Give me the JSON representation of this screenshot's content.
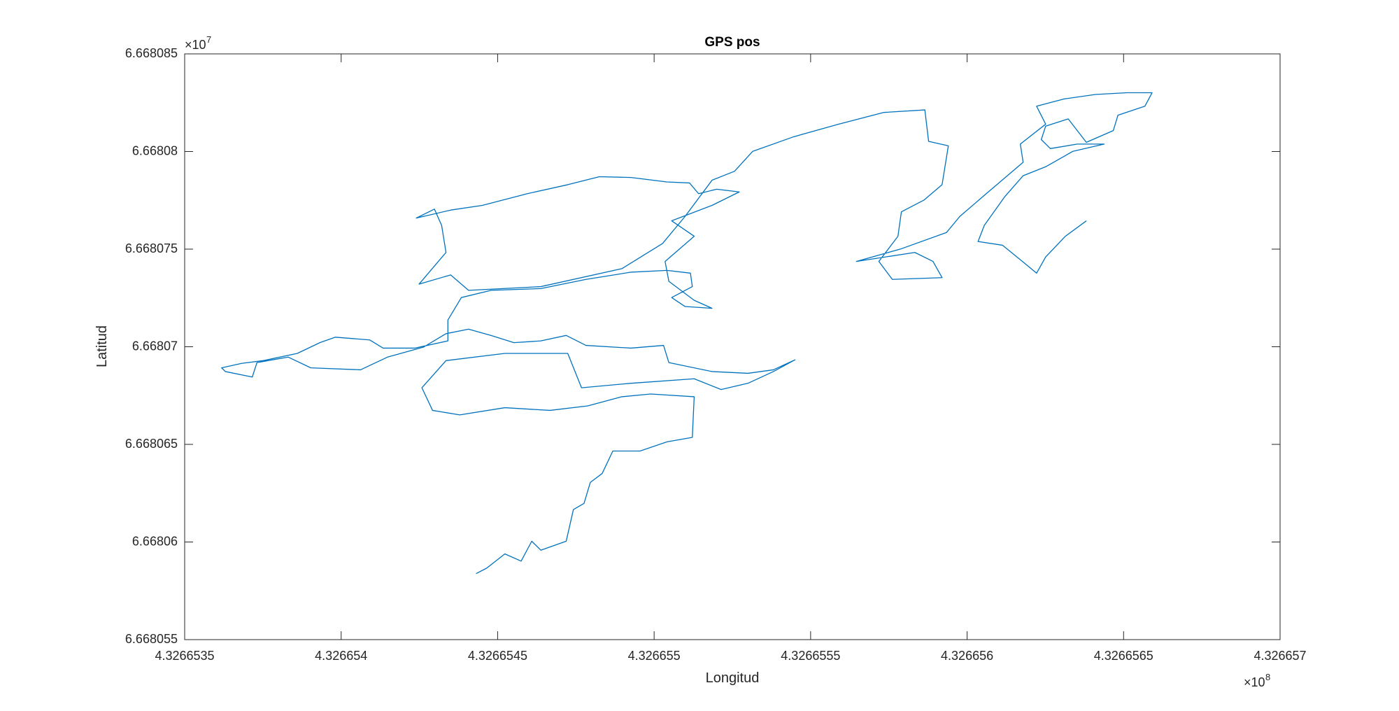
{
  "chart_data": {
    "type": "line",
    "title": "GPS pos",
    "xlabel": "Longitud",
    "ylabel": "Latitud",
    "x_multiplier": "×10",
    "x_multiplier_power": "8",
    "y_multiplier": "×10",
    "y_multiplier_power": "7",
    "xlim": [
      4.3266535,
      4.326657
    ],
    "xticks": [
      4.3266535,
      4.326654,
      4.3266545,
      4.326655,
      4.3266555,
      4.326656,
      4.3266565,
      4.326657
    ],
    "ylim": [
      6.668055,
      6.668085
    ],
    "yticks": [
      6.668055,
      6.66806,
      6.668065,
      6.66807,
      6.668075,
      6.66808,
      6.668085
    ],
    "grid": false,
    "box": true,
    "x": [
      4.326654431,
      4.326654465,
      4.326654523,
      4.326654575,
      4.326654609,
      4.326654638,
      4.326654719,
      4.326654742,
      4.326654776,
      4.326654796,
      4.326654834,
      4.326654868,
      4.326654955,
      4.326655041,
      4.326655122,
      4.326655128,
      4.326654989,
      4.326654897,
      4.326654788,
      4.326654667,
      4.326654523,
      4.326654379,
      4.326654292,
      4.326654258,
      4.326654335,
      4.326654523,
      4.326654724,
      4.326654768,
      4.326654926,
      4.326655128,
      4.326655214,
      4.3266553,
      4.326655381,
      4.32665545,
      4.326655381,
      4.3266553,
      4.326655185,
      4.326655047,
      4.32665503,
      4.326654926,
      4.326654782,
      4.326654719,
      4.326654638,
      4.326654552,
      4.326654479,
      4.326654407,
      4.326654335,
      4.326654263,
      4.326654148,
      4.326654062,
      4.326653903,
      4.326653831,
      4.326653731,
      4.326653716,
      4.32665363,
      4.326653618,
      4.326653682,
      4.326653751,
      4.32665386,
      4.326653932,
      4.326653981,
      4.326654091,
      4.326654134,
      4.326654235,
      4.326654341,
      4.326654341,
      4.326654384,
      4.326654479,
      4.326654638,
      4.326654782,
      4.326654926,
      4.326655041,
      4.326655116,
      4.326655122,
      4.326655056,
      4.326655099,
      4.326655185,
      4.326655128,
      4.326655047,
      4.326655035,
      4.326655128,
      4.326655056,
      4.326655185,
      4.326655272,
      4.3266552,
      4.326655142,
      4.326655113,
      4.326655041,
      4.326654926,
      4.326654825,
      4.326654724,
      4.326654595,
      4.326654451,
      4.32665435,
      4.32665424,
      4.326654298,
      4.326654321,
      4.326654335,
      4.326654249,
      4.32665435,
      4.326654407,
      4.326654638,
      4.326654897,
      4.326655027,
      4.326655099,
      4.326655185,
      4.326655257,
      4.326655315,
      4.326655445,
      4.326655589,
      4.326655733,
      4.326655865,
      4.326655877,
      4.32665594,
      4.32665592,
      4.326655862,
      4.32665579,
      4.326655779,
      4.326655718,
      4.326655761,
      4.32665592,
      4.326655891,
      4.326655833,
      4.326655646,
      4.32665579,
      4.326655934,
      4.326655977,
      4.326656078,
      4.326656179,
      4.32665617,
      4.326656251,
      4.326656222,
      4.326656309,
      4.32665641,
      4.32665651,
      4.326656591,
      4.326656568,
      4.326656482,
      4.326656467,
      4.326656381,
      4.326656323,
      4.326656251,
      4.326656237,
      4.326656266,
      4.326656352,
      4.326656438,
      4.326656338,
      4.326656251,
      4.326656179,
      4.326656121,
      4.326656055,
      4.326656035,
      4.326656113,
      4.32665617,
      4.326656222,
      4.326656251,
      4.326656314,
      4.326656381
    ],
    "series": [
      {
        "color": "#0072bd",
        "values": [
          6.66805838,
          6.66805866,
          6.66805939,
          6.66805902,
          6.66806004,
          6.66805958,
          6.66806004,
          6.66806166,
          6.66806198,
          6.66806305,
          6.66806351,
          6.66806466,
          6.66806466,
          6.66806513,
          6.66806536,
          6.66806744,
          6.66806758,
          6.66806744,
          6.66806697,
          6.66806674,
          6.66806688,
          6.66806651,
          6.66806674,
          6.6680679,
          6.66806929,
          6.66806966,
          6.66806966,
          6.6680679,
          6.66806813,
          6.66806836,
          6.66806781,
          6.66806813,
          6.66806873,
          6.66806933,
          6.66806882,
          6.66806864,
          6.66806873,
          6.66806919,
          6.66807007,
          6.66806993,
          6.66807007,
          6.66807058,
          6.6680703,
          6.66807021,
          6.66807058,
          6.6680709,
          6.66807067,
          6.66806998,
          6.66806947,
          6.66806882,
          6.66806892,
          6.66806947,
          6.66806919,
          6.66806845,
          6.66806873,
          6.66806892,
          6.66806915,
          6.66806929,
          6.66806966,
          6.66807021,
          6.66807049,
          6.66807035,
          6.66806993,
          6.66806993,
          6.6680703,
          6.66807137,
          6.66807252,
          6.66807289,
          6.66807298,
          6.66807345,
          6.66807382,
          6.66807391,
          6.66807377,
          6.66807308,
          6.66807252,
          6.66807206,
          6.66807197,
          6.66807238,
          6.66807335,
          6.66807437,
          6.66807566,
          6.66807645,
          6.66807724,
          6.66807793,
          6.66807807,
          6.66807784,
          6.66807839,
          6.66807844,
          6.66807867,
          6.66807871,
          6.6680783,
          6.66807784,
          6.66807724,
          6.668077,
          6.66807659,
          6.66807705,
          6.66807622,
          6.66807483,
          6.66807321,
          6.66807368,
          6.66807289,
          6.66807308,
          6.668074,
          6.66807529,
          6.66807668,
          6.66807853,
          6.66807899,
          6.66808001,
          6.66808075,
          6.6680814,
          6.668082,
          6.66808213,
          6.66808052,
          6.66808029,
          6.6680783,
          6.66807751,
          6.66807691,
          6.66807566,
          6.66807437,
          6.66807345,
          6.66807354,
          6.66807437,
          6.66807483,
          6.66807437,
          6.66807502,
          6.66807585,
          6.66807668,
          6.66807807,
          6.66807945,
          6.66808038,
          6.6680814,
          6.66808232,
          6.66808269,
          6.66808292,
          6.66808301,
          6.66808301,
          6.66808232,
          6.66808186,
          6.66808107,
          6.66808047,
          6.66808167,
          6.6680813,
          6.66808061,
          6.66808015,
          6.66808038,
          6.66808038,
          6.66808001,
          6.66807922,
          6.66807876,
          6.6680777,
          6.66807622,
          6.66807539,
          6.6680752,
          6.66807446,
          6.66807377,
          6.6680746,
          6.66807566,
          6.66807645
        ]
      }
    ]
  }
}
